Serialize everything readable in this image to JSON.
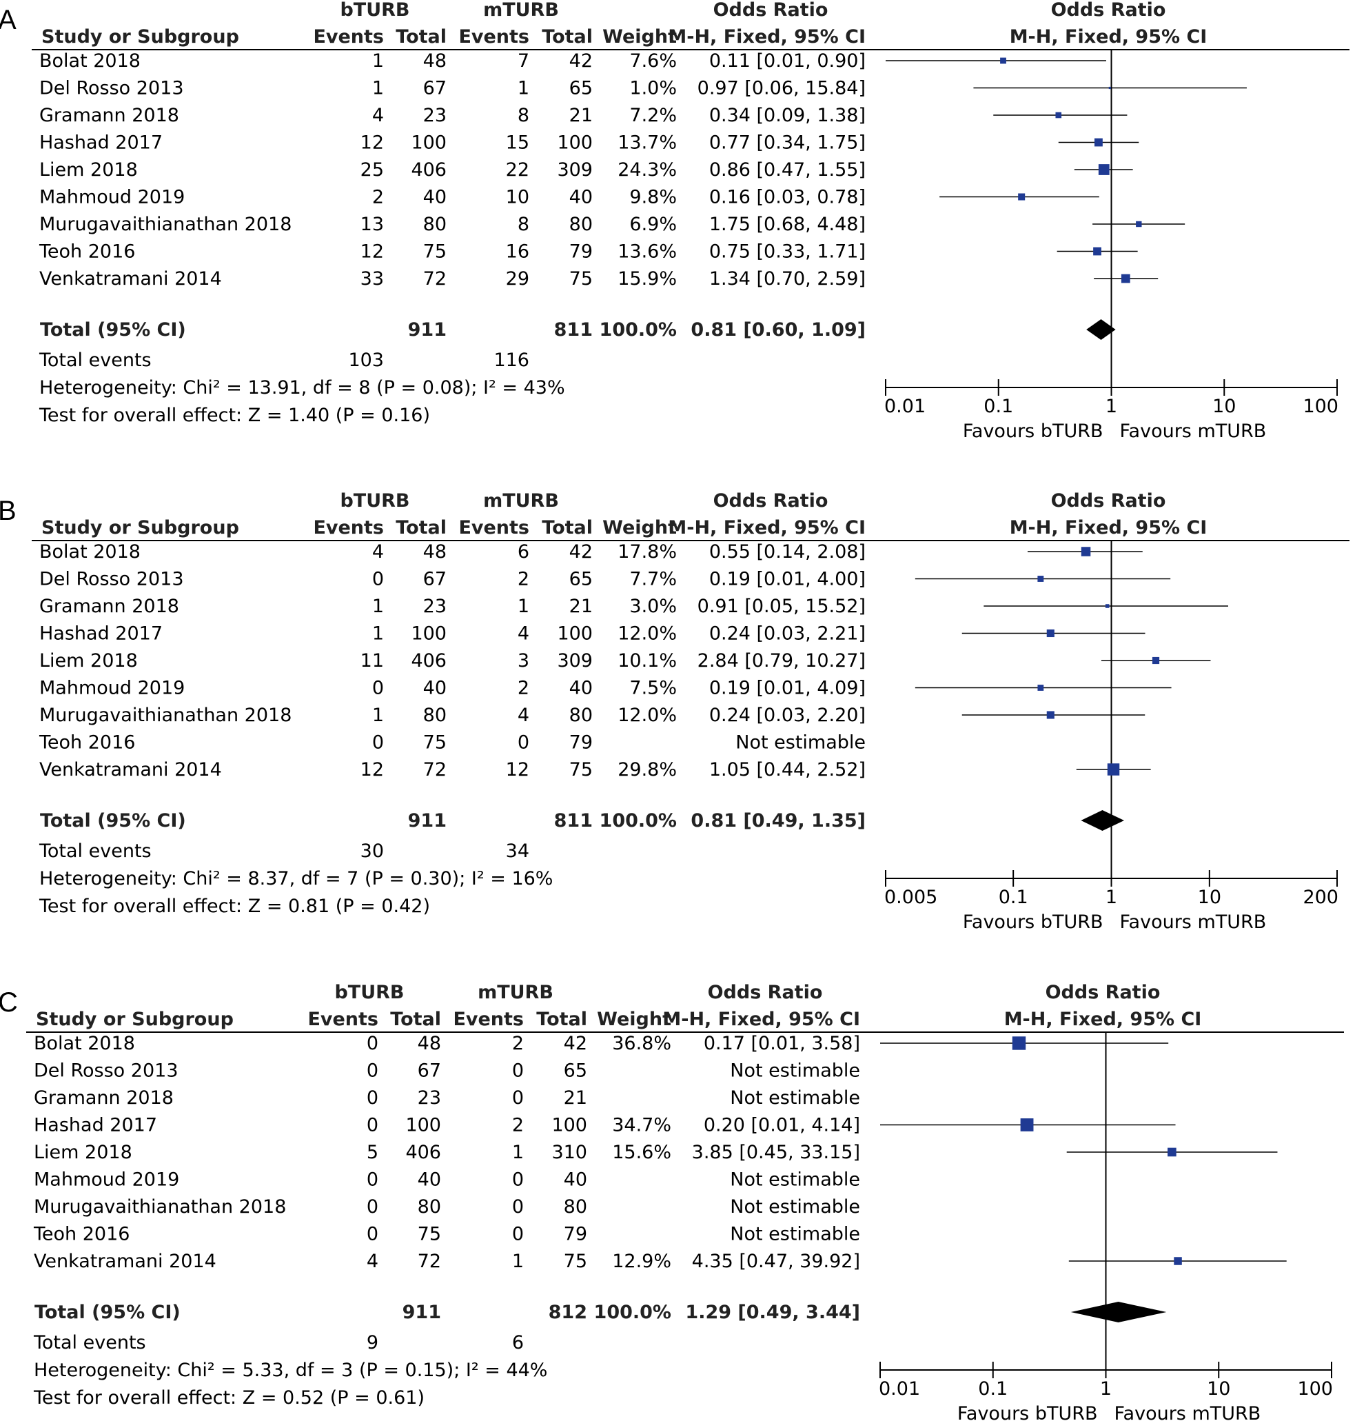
{
  "chart_data": [
    {
      "panel_label": "A",
      "type": "forest",
      "headers": {
        "group1": "bTURB",
        "group2": "mTURB",
        "study_col": "Study or Subgroup",
        "events": "Events",
        "total": "Total",
        "weight": "Weight",
        "or_title": "Odds Ratio",
        "or_method": "M-H, Fixed, 95% CI",
        "plot_title": "Odds Ratio",
        "plot_method": "M-H, Fixed, 95% CI"
      },
      "rows": [
        {
          "study": "Bolat 2018",
          "e1": "1",
          "n1": "48",
          "e2": "7",
          "n2": "42",
          "weight": "7.6%",
          "ci_text": "0.11 [0.01, 0.90]",
          "or": 0.11,
          "lo": 0.01,
          "hi": 0.9,
          "w": 7.6
        },
        {
          "study": "Del Rosso 2013",
          "e1": "1",
          "n1": "67",
          "e2": "1",
          "n2": "65",
          "weight": "1.0%",
          "ci_text": "0.97 [0.06, 15.84]",
          "or": 0.97,
          "lo": 0.06,
          "hi": 15.84,
          "w": 1.0
        },
        {
          "study": "Gramann 2018",
          "e1": "4",
          "n1": "23",
          "e2": "8",
          "n2": "21",
          "weight": "7.2%",
          "ci_text": "0.34 [0.09, 1.38]",
          "or": 0.34,
          "lo": 0.09,
          "hi": 1.38,
          "w": 7.2
        },
        {
          "study": "Hashad 2017",
          "e1": "12",
          "n1": "100",
          "e2": "15",
          "n2": "100",
          "weight": "13.7%",
          "ci_text": "0.77 [0.34, 1.75]",
          "or": 0.77,
          "lo": 0.34,
          "hi": 1.75,
          "w": 13.7
        },
        {
          "study": "Liem 2018",
          "e1": "25",
          "n1": "406",
          "e2": "22",
          "n2": "309",
          "weight": "24.3%",
          "ci_text": "0.86 [0.47, 1.55]",
          "or": 0.86,
          "lo": 0.47,
          "hi": 1.55,
          "w": 24.3
        },
        {
          "study": "Mahmoud 2019",
          "e1": "2",
          "n1": "40",
          "e2": "10",
          "n2": "40",
          "weight": "9.8%",
          "ci_text": "0.16 [0.03, 0.78]",
          "or": 0.16,
          "lo": 0.03,
          "hi": 0.78,
          "w": 9.8
        },
        {
          "study": "Murugavaithianathan 2018",
          "e1": "13",
          "n1": "80",
          "e2": "8",
          "n2": "80",
          "weight": "6.9%",
          "ci_text": "1.75 [0.68, 4.48]",
          "or": 1.75,
          "lo": 0.68,
          "hi": 4.48,
          "w": 6.9
        },
        {
          "study": "Teoh 2016",
          "e1": "12",
          "n1": "75",
          "e2": "16",
          "n2": "79",
          "weight": "13.6%",
          "ci_text": "0.75 [0.33, 1.71]",
          "or": 0.75,
          "lo": 0.33,
          "hi": 1.71,
          "w": 13.6
        },
        {
          "study": "Venkatramani 2014",
          "e1": "33",
          "n1": "72",
          "e2": "29",
          "n2": "75",
          "weight": "15.9%",
          "ci_text": "1.34 [0.70, 2.59]",
          "or": 1.34,
          "lo": 0.7,
          "hi": 2.59,
          "w": 15.9
        }
      ],
      "total": {
        "label": "Total (95% CI)",
        "n1": "911",
        "n2": "811",
        "weight": "100.0%",
        "ci_text": "0.81 [0.60, 1.09]",
        "or": 0.81,
        "lo": 0.6,
        "hi": 1.09
      },
      "events": {
        "label": "Total events",
        "e1": "103",
        "e2": "116"
      },
      "heterogeneity": "Heterogeneity: Chi² = 13.91, df = 8 (P = 0.08); I² = 43%",
      "overall": "Test for overall effect: Z = 1.40 (P = 0.16)",
      "axis": {
        "scale": "log",
        "min": 0.01,
        "max": 100,
        "ticks": [
          0.01,
          0.1,
          1,
          10,
          100
        ],
        "tick_labels": [
          "0.01",
          "0.1",
          "1",
          "10",
          "100"
        ]
      },
      "favours_left": "Favours bTURB",
      "favours_right": "Favours mTURB"
    },
    {
      "panel_label": "B",
      "type": "forest",
      "headers": {
        "group1": "bTURB",
        "group2": "mTURB",
        "study_col": "Study or Subgroup",
        "events": "Events",
        "total": "Total",
        "weight": "Weight",
        "or_title": "Odds Ratio",
        "or_method": "M-H, Fixed, 95% CI",
        "plot_title": "Odds Ratio",
        "plot_method": "M-H, Fixed, 95% CI"
      },
      "rows": [
        {
          "study": "Bolat 2018",
          "e1": "4",
          "n1": "48",
          "e2": "6",
          "n2": "42",
          "weight": "17.8%",
          "ci_text": "0.55 [0.14, 2.08]",
          "or": 0.55,
          "lo": 0.14,
          "hi": 2.08,
          "w": 17.8
        },
        {
          "study": "Del Rosso 2013",
          "e1": "0",
          "n1": "67",
          "e2": "2",
          "n2": "65",
          "weight": "7.7%",
          "ci_text": "0.19 [0.01, 4.00]",
          "or": 0.19,
          "lo": 0.01,
          "hi": 4.0,
          "w": 7.7
        },
        {
          "study": "Gramann 2018",
          "e1": "1",
          "n1": "23",
          "e2": "1",
          "n2": "21",
          "weight": "3.0%",
          "ci_text": "0.91 [0.05, 15.52]",
          "or": 0.91,
          "lo": 0.05,
          "hi": 15.52,
          "w": 3.0
        },
        {
          "study": "Hashad 2017",
          "e1": "1",
          "n1": "100",
          "e2": "4",
          "n2": "100",
          "weight": "12.0%",
          "ci_text": "0.24 [0.03, 2.21]",
          "or": 0.24,
          "lo": 0.03,
          "hi": 2.21,
          "w": 12.0
        },
        {
          "study": "Liem 2018",
          "e1": "11",
          "n1": "406",
          "e2": "3",
          "n2": "309",
          "weight": "10.1%",
          "ci_text": "2.84 [0.79, 10.27]",
          "or": 2.84,
          "lo": 0.79,
          "hi": 10.27,
          "w": 10.1
        },
        {
          "study": "Mahmoud 2019",
          "e1": "0",
          "n1": "40",
          "e2": "2",
          "n2": "40",
          "weight": "7.5%",
          "ci_text": "0.19 [0.01, 4.09]",
          "or": 0.19,
          "lo": 0.01,
          "hi": 4.09,
          "w": 7.5
        },
        {
          "study": "Murugavaithianathan 2018",
          "e1": "1",
          "n1": "80",
          "e2": "4",
          "n2": "80",
          "weight": "12.0%",
          "ci_text": "0.24 [0.03, 2.20]",
          "or": 0.24,
          "lo": 0.03,
          "hi": 2.2,
          "w": 12.0
        },
        {
          "study": "Teoh 2016",
          "e1": "0",
          "n1": "75",
          "e2": "0",
          "n2": "79",
          "weight": "",
          "ci_text": "Not estimable",
          "or": null,
          "lo": null,
          "hi": null,
          "w": null
        },
        {
          "study": "Venkatramani 2014",
          "e1": "12",
          "n1": "72",
          "e2": "12",
          "n2": "75",
          "weight": "29.8%",
          "ci_text": "1.05 [0.44, 2.52]",
          "or": 1.05,
          "lo": 0.44,
          "hi": 2.52,
          "w": 29.8
        }
      ],
      "total": {
        "label": "Total (95% CI)",
        "n1": "911",
        "n2": "811",
        "weight": "100.0%",
        "ci_text": "0.81 [0.49, 1.35]",
        "or": 0.81,
        "lo": 0.49,
        "hi": 1.35
      },
      "events": {
        "label": "Total events",
        "e1": "30",
        "e2": "34"
      },
      "heterogeneity": "Heterogeneity: Chi² = 8.37, df = 7 (P = 0.30); I² = 16%",
      "overall": "Test for overall effect: Z = 0.81 (P = 0.42)",
      "axis": {
        "scale": "log",
        "min": 0.005,
        "max": 200,
        "ticks": [
          0.005,
          0.1,
          1,
          10,
          200
        ],
        "tick_labels": [
          "0.005",
          "0.1",
          "1",
          "10",
          "200"
        ]
      },
      "favours_left": "Favours bTURB",
      "favours_right": "Favours mTURB"
    },
    {
      "panel_label": "C",
      "type": "forest",
      "headers": {
        "group1": "bTURB",
        "group2": "mTURB",
        "study_col": "Study or Subgroup",
        "events": "Events",
        "total": "Total",
        "weight": "Weight",
        "or_title": "Odds Ratio",
        "or_method": "M-H, Fixed, 95% CI",
        "plot_title": "Odds Ratio",
        "plot_method": "M-H, Fixed, 95% CI"
      },
      "rows": [
        {
          "study": "Bolat 2018",
          "e1": "0",
          "n1": "48",
          "e2": "2",
          "n2": "42",
          "weight": "36.8%",
          "ci_text": "0.17 [0.01, 3.58]",
          "or": 0.17,
          "lo": 0.01,
          "hi": 3.58,
          "w": 36.8
        },
        {
          "study": "Del Rosso 2013",
          "e1": "0",
          "n1": "67",
          "e2": "0",
          "n2": "65",
          "weight": "",
          "ci_text": "Not estimable",
          "or": null,
          "lo": null,
          "hi": null,
          "w": null
        },
        {
          "study": "Gramann 2018",
          "e1": "0",
          "n1": "23",
          "e2": "0",
          "n2": "21",
          "weight": "",
          "ci_text": "Not estimable",
          "or": null,
          "lo": null,
          "hi": null,
          "w": null
        },
        {
          "study": "Hashad 2017",
          "e1": "0",
          "n1": "100",
          "e2": "2",
          "n2": "100",
          "weight": "34.7%",
          "ci_text": "0.20 [0.01, 4.14]",
          "or": 0.2,
          "lo": 0.01,
          "hi": 4.14,
          "w": 34.7
        },
        {
          "study": "Liem 2018",
          "e1": "5",
          "n1": "406",
          "e2": "1",
          "n2": "310",
          "weight": "15.6%",
          "ci_text": "3.85 [0.45, 33.15]",
          "or": 3.85,
          "lo": 0.45,
          "hi": 33.15,
          "w": 15.6
        },
        {
          "study": "Mahmoud 2019",
          "e1": "0",
          "n1": "40",
          "e2": "0",
          "n2": "40",
          "weight": "",
          "ci_text": "Not estimable",
          "or": null,
          "lo": null,
          "hi": null,
          "w": null
        },
        {
          "study": "Murugavaithianathan 2018",
          "e1": "0",
          "n1": "80",
          "e2": "0",
          "n2": "80",
          "weight": "",
          "ci_text": "Not estimable",
          "or": null,
          "lo": null,
          "hi": null,
          "w": null
        },
        {
          "study": "Teoh 2016",
          "e1": "0",
          "n1": "75",
          "e2": "0",
          "n2": "79",
          "weight": "",
          "ci_text": "Not estimable",
          "or": null,
          "lo": null,
          "hi": null,
          "w": null
        },
        {
          "study": "Venkatramani 2014",
          "e1": "4",
          "n1": "72",
          "e2": "1",
          "n2": "75",
          "weight": "12.9%",
          "ci_text": "4.35 [0.47, 39.92]",
          "or": 4.35,
          "lo": 0.47,
          "hi": 39.92,
          "w": 12.9
        }
      ],
      "total": {
        "label": "Total (95% CI)",
        "n1": "911",
        "n2": "812",
        "weight": "100.0%",
        "ci_text": "1.29 [0.49, 3.44]",
        "or": 1.29,
        "lo": 0.49,
        "hi": 3.44
      },
      "events": {
        "label": "Total events",
        "e1": "9",
        "e2": "6"
      },
      "heterogeneity": "Heterogeneity: Chi² = 5.33, df = 3 (P = 0.15); I² = 44%",
      "overall": "Test for overall effect: Z = 0.52 (P = 0.61)",
      "axis": {
        "scale": "log",
        "min": 0.01,
        "max": 100,
        "ticks": [
          0.01,
          0.1,
          1,
          10,
          100
        ],
        "tick_labels": [
          "0.01",
          "0.1",
          "1",
          "10",
          "100"
        ]
      },
      "favours_left": "Favours bTURB",
      "favours_right": "Favours mTURB"
    }
  ],
  "colors": {
    "marker": "#1f3a93",
    "line": "#000000",
    "diamond": "#000000"
  }
}
